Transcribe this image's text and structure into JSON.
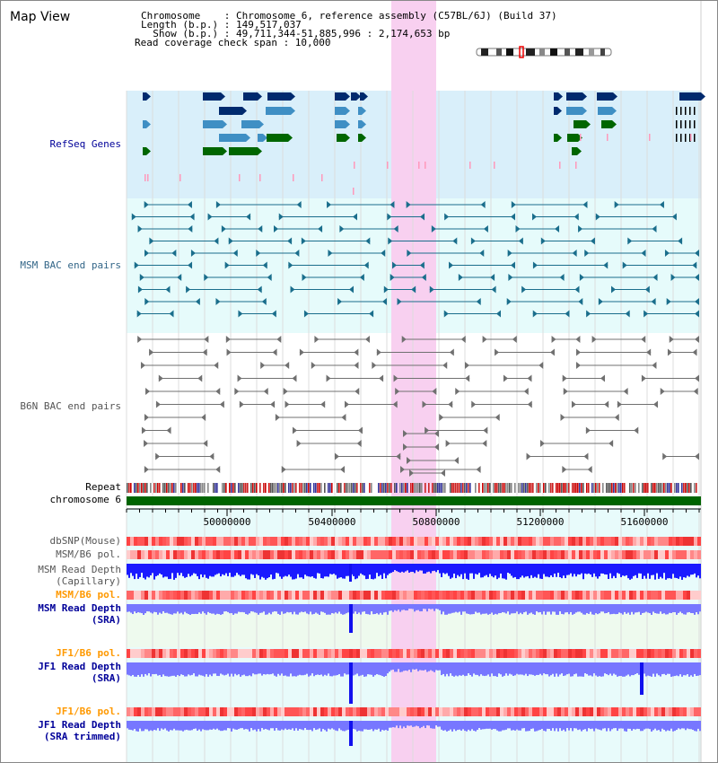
{
  "title": "Map View",
  "info": {
    "chromosome_line": "Chromosome    : Chromosome 6, reference assembly (C57BL/6J) (Build 37)",
    "length_line": "Length (b.p.) : 149,517,037",
    "show_line": "  Show (b.p.) : 49,711,344-51,885,996 : 2,174,653 bp",
    "coverage_line": "Read coverage check span : 10,000"
  },
  "tracks": {
    "refseq": "RefSeq Genes",
    "msm_bac": "MSM BAC end pairs",
    "b6n_bac": "B6N BAC end pairs",
    "repeat": "Repeat",
    "chromosome": "chromosome 6",
    "dbsnp": "dbSNP(Mouse)",
    "msm_b6_pol": "MSM/B6 pol.",
    "msm_depth_cap_1": "MSM Read Depth",
    "msm_depth_cap_2": "(Capillary)",
    "msm_b6_pol_2": "MSM/B6 pol.",
    "msm_depth_sra_1": "MSM Read Depth",
    "msm_depth_sra_2": "(SRA)",
    "jf1_b6_pol": "JF1/B6 pol.",
    "jf1_depth_sra_1": "JF1 Read Depth",
    "jf1_depth_sra_2": "(SRA)",
    "jf1_b6_pol_2": "JF1/B6 pol.",
    "jf1_depth_trim_1": "JF1 Read Depth",
    "jf1_depth_trim_2": "(SRA trimmed)"
  },
  "ruler": {
    "ticks": [
      "50000000",
      "50400000",
      "50800000",
      "51200000",
      "51600000"
    ]
  },
  "colors": {
    "gene_dark": "#002a6e",
    "gene_mid": "#3f8fc4",
    "gene_green": "#006600",
    "msm_bac": "#1a6e8c",
    "b6n_bac": "#707070",
    "chromosome": "#006400",
    "depth_blue": "#1a1aff",
    "depth_light": "#7777ff",
    "highlight": "#f8d0f0",
    "label_navy": "#000099",
    "label_teal": "#336688",
    "label_orange": "#ff9900"
  }
}
